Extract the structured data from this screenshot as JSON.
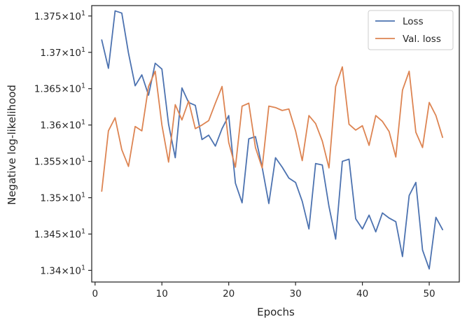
{
  "chart_data": {
    "type": "line",
    "xlabel": "Epochs",
    "ylabel": "Negative log-likelihood",
    "xlim": [
      -0.5,
      54.5
    ],
    "ylim": [
      13.384,
      13.7643
    ],
    "x_ticks": [
      0,
      10,
      20,
      30,
      40,
      50
    ],
    "x_tick_labels": [
      "0",
      "10",
      "20",
      "30",
      "40",
      "50"
    ],
    "y_ticks": [
      13.4,
      13.45,
      13.5,
      13.55,
      13.6,
      13.65,
      13.7,
      13.75
    ],
    "y_tick_labels": [
      {
        "mantissa": "1.34",
        "exp": "1"
      },
      {
        "mantissa": "1.345",
        "exp": "1"
      },
      {
        "mantissa": "1.35",
        "exp": "1"
      },
      {
        "mantissa": "1.355",
        "exp": "1"
      },
      {
        "mantissa": "1.36",
        "exp": "1"
      },
      {
        "mantissa": "1.365",
        "exp": "1"
      },
      {
        "mantissa": "1.37",
        "exp": "1"
      },
      {
        "mantissa": "1.375",
        "exp": "1"
      }
    ],
    "grid": false,
    "legend_position": "top-right",
    "x": [
      1,
      2,
      3,
      4,
      5,
      6,
      7,
      8,
      9,
      10,
      11,
      12,
      13,
      14,
      15,
      16,
      17,
      18,
      19,
      20,
      21,
      22,
      23,
      24,
      25,
      26,
      27,
      28,
      29,
      30,
      31,
      32,
      33,
      34,
      35,
      36,
      37,
      38,
      39,
      40,
      41,
      42,
      43,
      44,
      45,
      46,
      47,
      48,
      49,
      50,
      51,
      52
    ],
    "series": [
      {
        "name": "Loss",
        "color": "#4c72b0",
        "values": [
          13.717,
          13.678,
          13.757,
          13.754,
          13.699,
          13.654,
          13.669,
          13.641,
          13.685,
          13.677,
          13.601,
          13.555,
          13.651,
          13.631,
          13.627,
          13.58,
          13.586,
          13.571,
          13.595,
          13.613,
          13.52,
          13.493,
          13.581,
          13.584,
          13.542,
          13.492,
          13.555,
          13.542,
          13.527,
          13.521,
          13.495,
          13.457,
          13.547,
          13.545,
          13.488,
          13.443,
          13.55,
          13.553,
          13.471,
          13.457,
          13.476,
          13.453,
          13.479,
          13.472,
          13.467,
          13.419,
          13.503,
          13.521,
          13.428,
          13.402,
          13.473,
          13.456
        ]
      },
      {
        "name": "Val. loss",
        "color": "#dd8452",
        "values": [
          13.509,
          13.592,
          13.61,
          13.566,
          13.543,
          13.598,
          13.592,
          13.653,
          13.674,
          13.6,
          13.549,
          13.628,
          13.607,
          13.633,
          13.595,
          13.6,
          13.606,
          13.63,
          13.653,
          13.576,
          13.542,
          13.626,
          13.63,
          13.569,
          13.541,
          13.626,
          13.624,
          13.62,
          13.622,
          13.592,
          13.551,
          13.613,
          13.602,
          13.578,
          13.541,
          13.653,
          13.68,
          13.601,
          13.593,
          13.599,
          13.572,
          13.613,
          13.605,
          13.591,
          13.556,
          13.648,
          13.674,
          13.59,
          13.569,
          13.631,
          13.613,
          13.583
        ]
      }
    ]
  }
}
